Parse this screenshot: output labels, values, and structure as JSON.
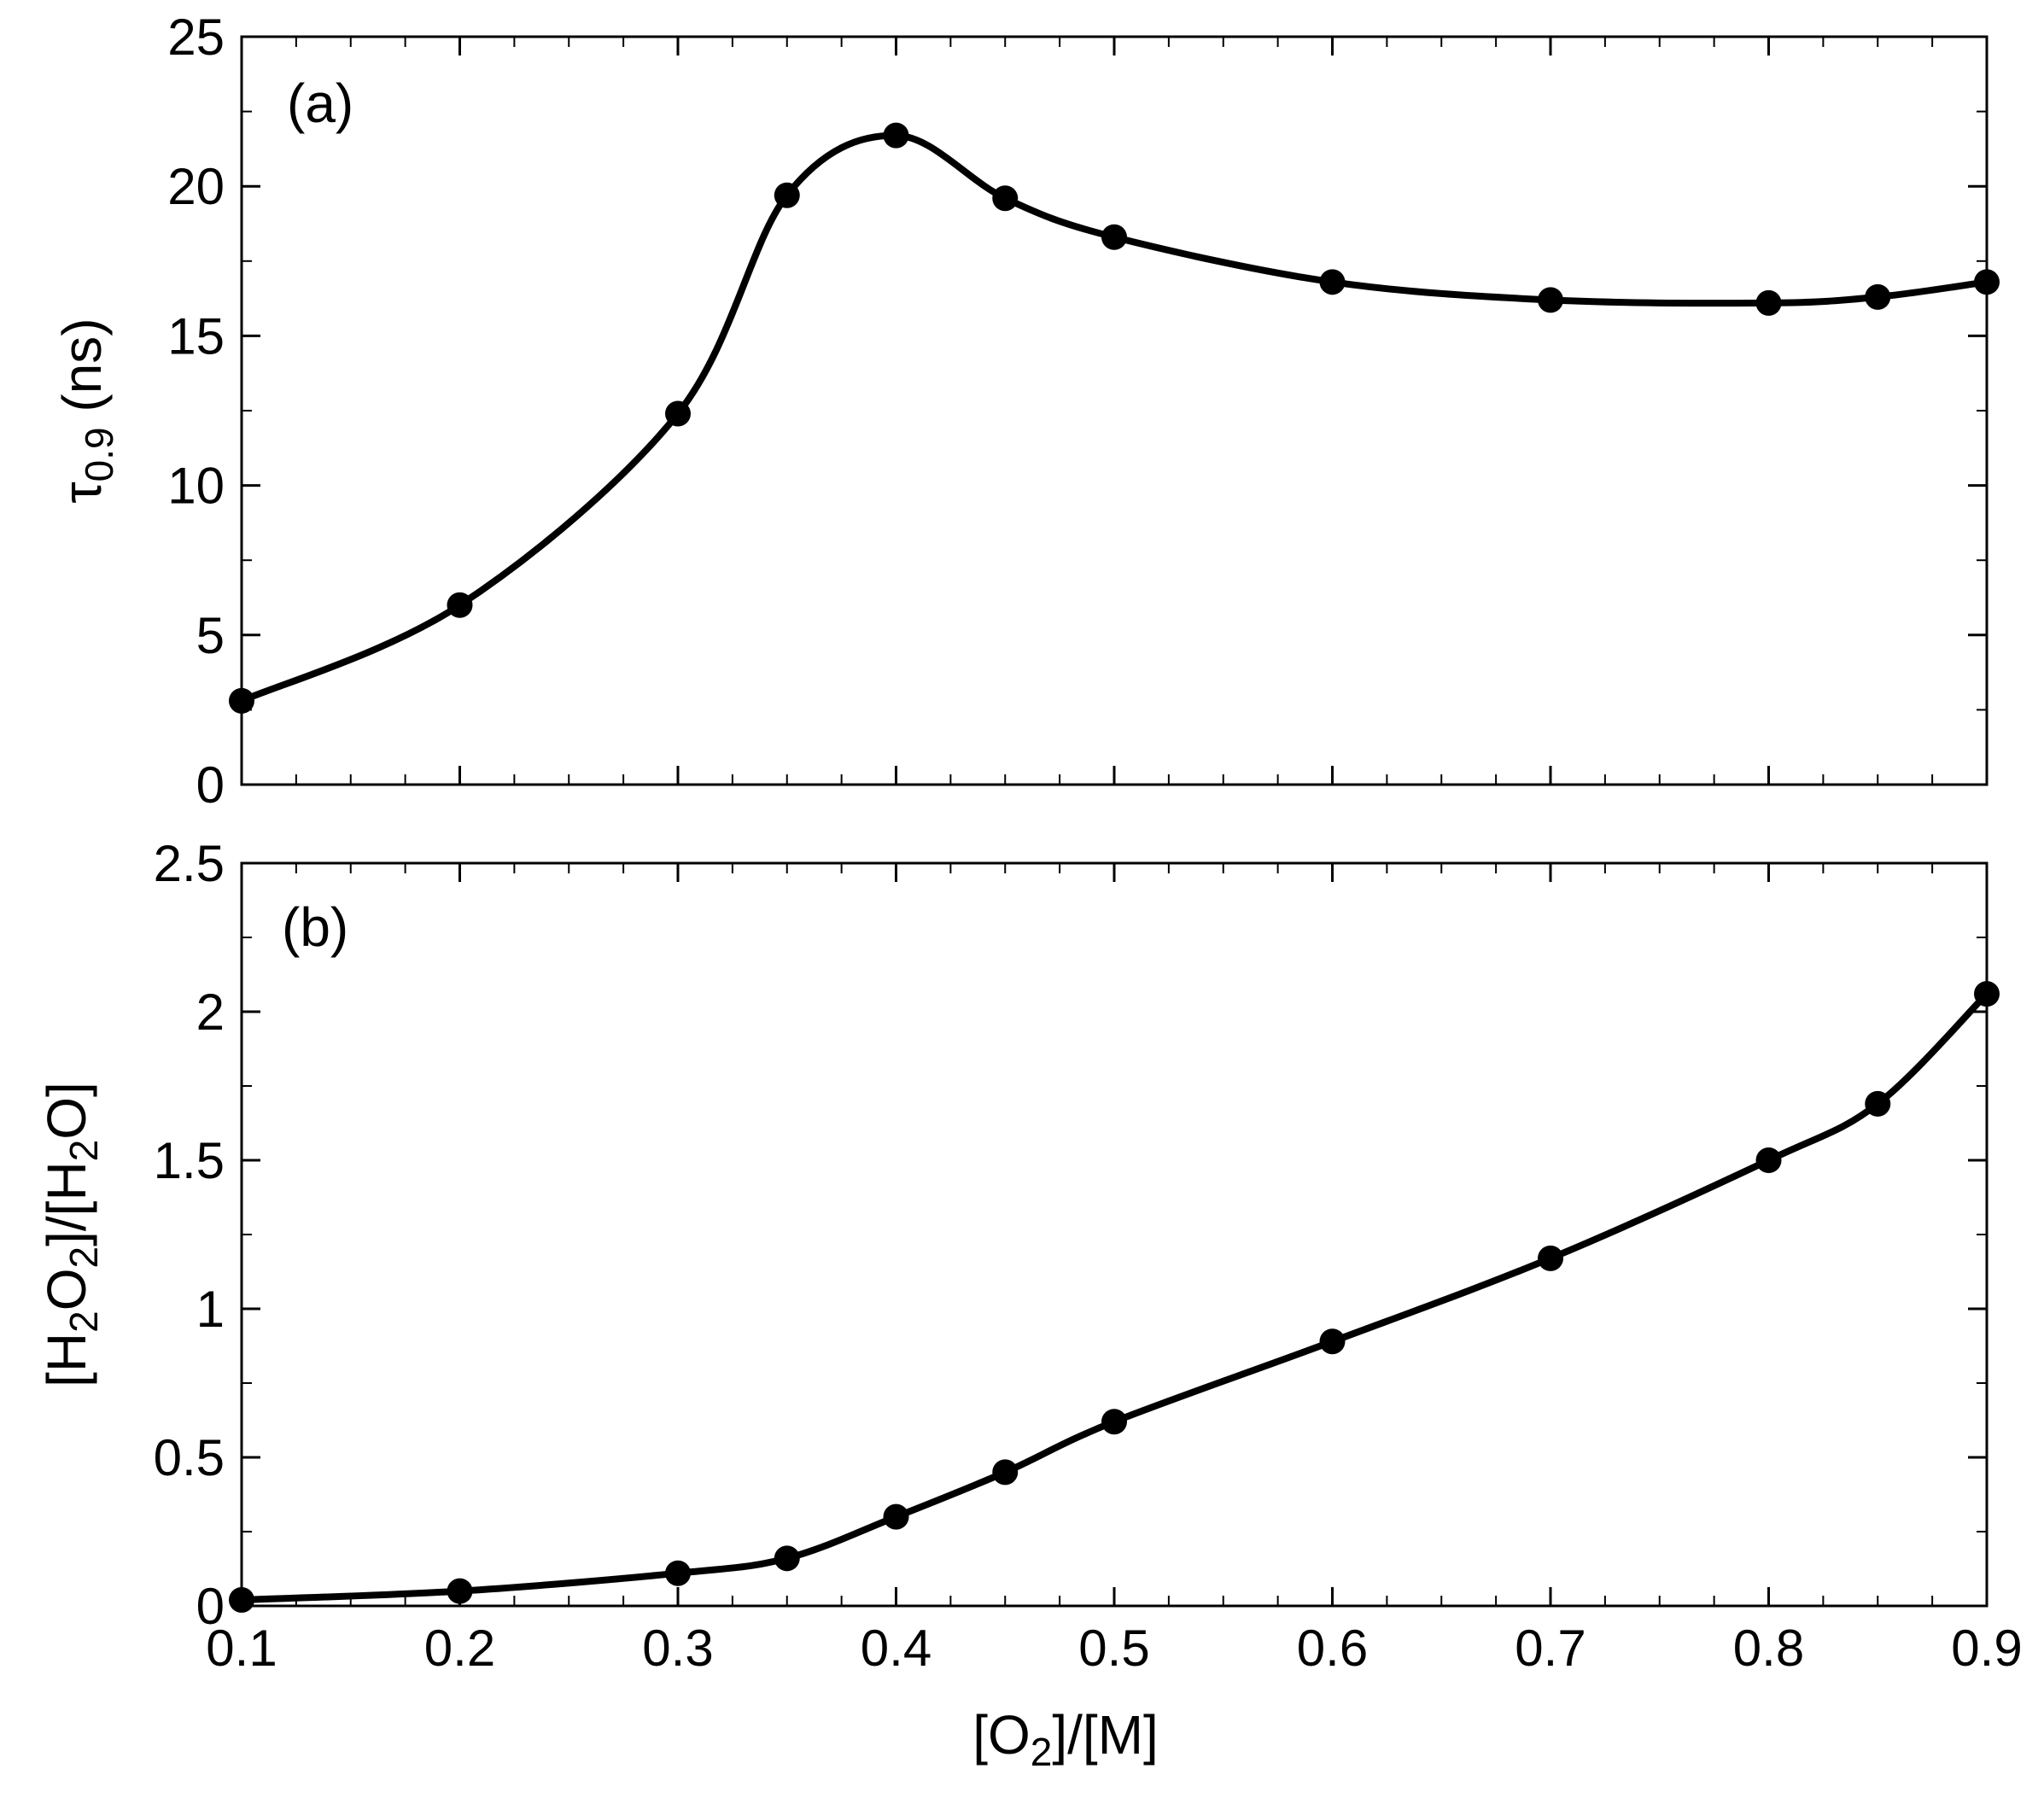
{
  "colors": {
    "line": "#000000",
    "marker": "#000000",
    "background": "#ffffff"
  },
  "chart_data": [
    {
      "type": "line",
      "panel_label": "(a)",
      "ylabel_main": "τ",
      "ylabel_sub": "0.9",
      "ylabel_unit": " (ns)",
      "xlim": [
        0.1,
        0.9
      ],
      "ylim": [
        0,
        25
      ],
      "x_ticks": [
        "0.1",
        "0.2",
        "0.3",
        "0.4",
        "0.5",
        "0.6",
        "0.7",
        "0.8",
        "0.9"
      ],
      "x_tick_labels_shown": false,
      "y_ticks": [
        "0",
        "5",
        "10",
        "15",
        "20",
        "25"
      ],
      "grid": false,
      "legend": "none",
      "series": [
        {
          "x": [
            0.1,
            0.2,
            0.3,
            0.35,
            0.4,
            0.45,
            0.5,
            0.6,
            0.7,
            0.8,
            0.85,
            0.9
          ],
          "y": [
            2.8,
            6.0,
            12.4,
            19.7,
            21.7,
            19.6,
            18.3,
            16.8,
            16.2,
            16.1,
            16.3,
            16.8
          ]
        }
      ]
    },
    {
      "type": "line",
      "panel_label": "(b)",
      "ylabel_parts": [
        "[H",
        "2",
        "O",
        "2",
        "]/[H",
        "2",
        "O]"
      ],
      "xlabel_parts": [
        "[O",
        "2",
        "]/[M]"
      ],
      "xlim": [
        0.1,
        0.9
      ],
      "ylim": [
        0,
        2.5
      ],
      "x_ticks": [
        "0.1",
        "0.2",
        "0.3",
        "0.4",
        "0.5",
        "0.6",
        "0.7",
        "0.8",
        "0.9"
      ],
      "x_tick_labels_shown": true,
      "y_ticks": [
        "0",
        "0.5",
        "1",
        "1.5",
        "2",
        "2.5"
      ],
      "grid": false,
      "legend": "none",
      "series": [
        {
          "x": [
            0.1,
            0.2,
            0.3,
            0.35,
            0.4,
            0.45,
            0.5,
            0.6,
            0.7,
            0.8,
            0.85,
            0.9
          ],
          "y": [
            0.02,
            0.05,
            0.11,
            0.16,
            0.3,
            0.45,
            0.62,
            0.89,
            1.17,
            1.5,
            1.69,
            2.06
          ]
        }
      ]
    }
  ]
}
